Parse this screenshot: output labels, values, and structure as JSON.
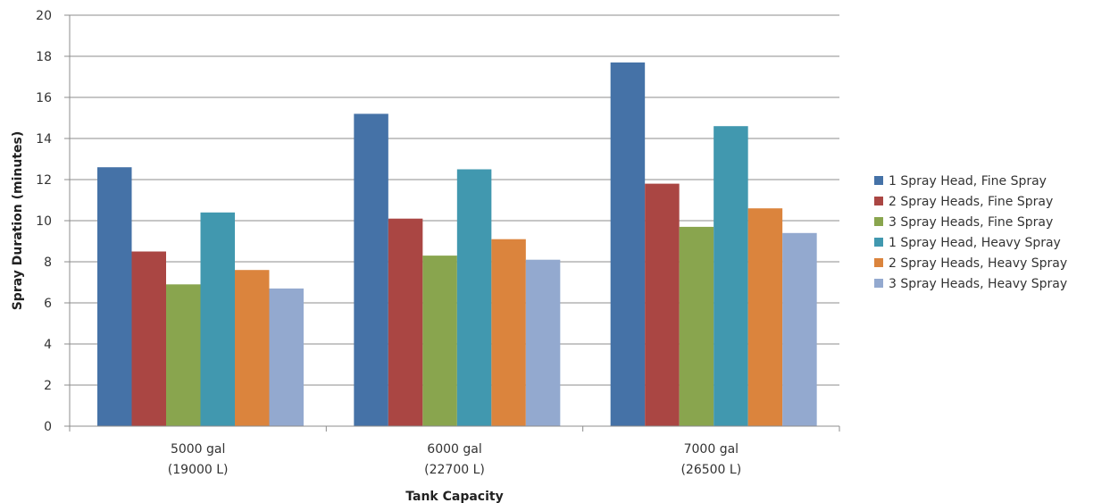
{
  "chart_data": {
    "type": "bar",
    "title": "",
    "xlabel": "Tank Capacity",
    "ylabel": "Spray Duration (minutes)",
    "ylim": [
      0,
      20
    ],
    "yticks": [
      "0",
      "2",
      "4",
      "6",
      "8",
      "10",
      "12",
      "14",
      "16",
      "18",
      "20"
    ],
    "categories": [
      [
        "5000 gal",
        "(19000 L)"
      ],
      [
        "6000 gal",
        "(22700 L)"
      ],
      [
        "7000 gal",
        "(26500 L)"
      ]
    ],
    "grid": true,
    "legend_position": "right",
    "series": [
      {
        "name": "1 Spray Head, Fine Spray",
        "color": "#4572A7",
        "values": [
          12.6,
          15.2,
          17.7
        ]
      },
      {
        "name": "2 Spray Heads, Fine Spray",
        "color": "#AA4643",
        "values": [
          8.5,
          10.1,
          11.8
        ]
      },
      {
        "name": "3 Spray Heads, Fine Spray",
        "color": "#89A54E",
        "values": [
          6.9,
          8.3,
          9.7
        ]
      },
      {
        "name": "1 Spray Head, Heavy Spray",
        "color": "#4198AF",
        "values": [
          10.4,
          12.5,
          14.6
        ]
      },
      {
        "name": "2 Spray Heads, Heavy Spray",
        "color": "#DB843D",
        "values": [
          7.6,
          9.1,
          10.6
        ]
      },
      {
        "name": "3 Spray Heads, Heavy Spray",
        "color": "#93A9CF",
        "values": [
          6.7,
          8.1,
          9.4
        ]
      }
    ]
  }
}
